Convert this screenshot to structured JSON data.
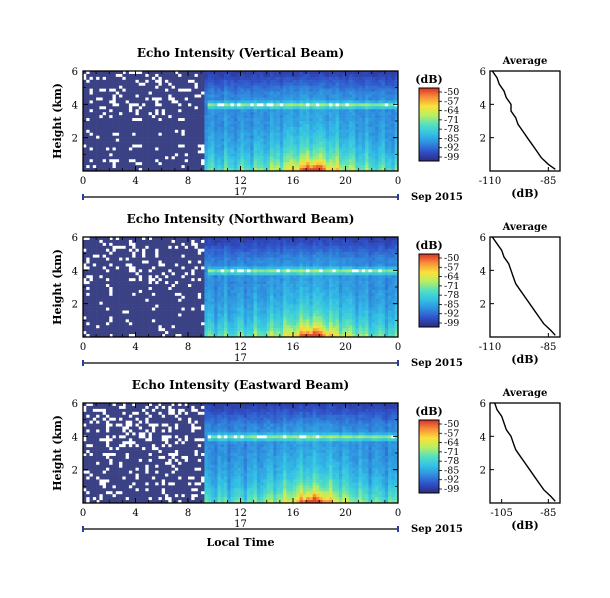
{
  "colors": {
    "background": "#3a4285",
    "colormap": [
      "#2b2d7c",
      "#3050c8",
      "#2f8fdf",
      "#33c2e6",
      "#55e0c0",
      "#b8ef63",
      "#fbe13a",
      "#f8903a",
      "#d9332a"
    ]
  },
  "chart_data": [
    {
      "type": "heatmap",
      "title": "Echo Intensity (Vertical Beam)",
      "ylabel": "Height (km)",
      "xlabel": "",
      "x_ticks": [
        "0",
        "4",
        "8",
        "12",
        "16",
        "20",
        "0"
      ],
      "y_ticks": [
        "2",
        "4",
        "6"
      ],
      "xlim_hours": [
        0,
        24
      ],
      "ylim_km": [
        0,
        6
      ],
      "date_label": "17",
      "month_label": "Sep 2015",
      "colorbar": {
        "unit": "(dB)",
        "ticks": [
          "-50",
          "-57",
          "-64",
          "-71",
          "-78",
          "-85",
          "-92",
          "-99"
        ]
      },
      "profile": {
        "title": "Average",
        "xlabel": "(dB)",
        "x_ticks": [
          "-110",
          "-85"
        ],
        "y_ticks": [
          "2",
          "4",
          "6"
        ],
        "xlim": [
          -110,
          -80
        ],
        "heights_km": [
          6.0,
          5.6,
          5.2,
          4.8,
          4.4,
          4.0,
          3.6,
          3.2,
          2.8,
          2.4,
          2.0,
          1.6,
          1.2,
          0.8,
          0.4,
          0.1
        ],
        "values_db": [
          -109,
          -107,
          -106,
          -104,
          -103,
          -101,
          -101,
          -99,
          -98,
          -96,
          -94,
          -92,
          -90,
          -88,
          -85,
          -82
        ]
      }
    },
    {
      "type": "heatmap",
      "title": "Echo Intensity (Northward Beam)",
      "ylabel": "Height (km)",
      "xlabel": "",
      "x_ticks": [
        "0",
        "4",
        "8",
        "12",
        "16",
        "20",
        "0"
      ],
      "y_ticks": [
        "2",
        "4",
        "6"
      ],
      "xlim_hours": [
        0,
        24
      ],
      "ylim_km": [
        0,
        6
      ],
      "date_label": "17",
      "month_label": "Sep 2015",
      "colorbar": {
        "unit": "(dB)",
        "ticks": [
          "-50",
          "-57",
          "-64",
          "-71",
          "-78",
          "-85",
          "-92",
          "-99"
        ]
      },
      "profile": {
        "title": "Average",
        "xlabel": "(dB)",
        "x_ticks": [
          "-110",
          "-85"
        ],
        "y_ticks": [
          "2",
          "4",
          "6"
        ],
        "xlim": [
          -110,
          -80
        ],
        "heights_km": [
          6.0,
          5.6,
          5.2,
          4.8,
          4.4,
          4.0,
          3.6,
          3.2,
          2.8,
          2.4,
          2.0,
          1.6,
          1.2,
          0.8,
          0.4,
          0.1
        ],
        "values_db": [
          -109,
          -107,
          -105,
          -104,
          -102,
          -101,
          -100,
          -99,
          -97,
          -95,
          -93,
          -91,
          -89,
          -87,
          -84,
          -82
        ]
      }
    },
    {
      "type": "heatmap",
      "title": "Echo Intensity (Eastward Beam)",
      "ylabel": "Height (km)",
      "xlabel": "Local Time",
      "x_ticks": [
        "0",
        "4",
        "8",
        "12",
        "16",
        "20",
        "0"
      ],
      "y_ticks": [
        "2",
        "4",
        "6"
      ],
      "xlim_hours": [
        0,
        24
      ],
      "ylim_km": [
        0,
        6
      ],
      "date_label": "17",
      "month_label": "Sep 2015",
      "colorbar": {
        "unit": "(dB)",
        "ticks": [
          "-50",
          "-57",
          "-64",
          "-71",
          "-78",
          "-85",
          "-92",
          "-99"
        ]
      },
      "profile": {
        "title": "Average",
        "xlabel": "(dB)",
        "x_ticks": [
          "-105",
          "-85"
        ],
        "y_ticks": [
          "2",
          "4",
          "6"
        ],
        "xlim": [
          -110,
          -80
        ],
        "heights_km": [
          6.0,
          5.6,
          5.2,
          4.8,
          4.4,
          4.0,
          3.6,
          3.2,
          2.8,
          2.4,
          2.0,
          1.6,
          1.2,
          0.8,
          0.4,
          0.1
        ],
        "values_db": [
          -108,
          -107,
          -105,
          -104,
          -103,
          -101,
          -100,
          -99,
          -97,
          -95,
          -93,
          -91,
          -89,
          -87,
          -84,
          -82
        ]
      }
    }
  ]
}
